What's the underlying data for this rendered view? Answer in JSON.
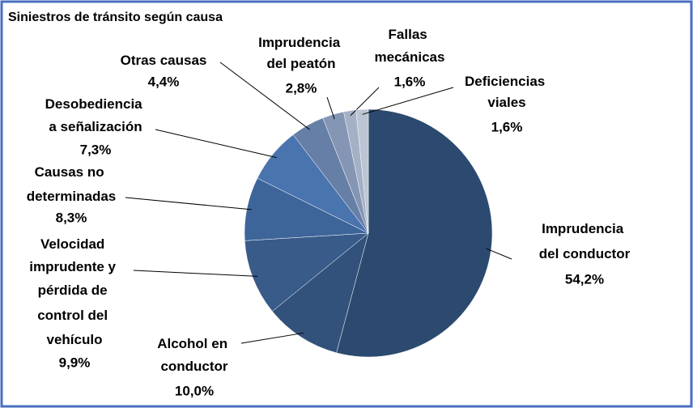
{
  "chart_data": {
    "type": "pie",
    "title": "Siniestros de tránsito según causa",
    "categories": [
      "Imprudencia del conductor",
      "Alcohol en conductor",
      "Velocidad imprudente y pérdida de control del vehículo",
      "Causas no determinadas",
      "Desobediencia a señalización",
      "Otras causas",
      "Imprudencia del peatón",
      "Fallas mecánicas",
      "Deficiencias viales"
    ],
    "values": [
      54.2,
      10.0,
      9.9,
      8.3,
      7.3,
      4.4,
      2.8,
      1.6,
      1.6
    ],
    "value_labels": [
      "54,2%",
      "10,0%",
      "9,9%",
      "8,3%",
      "7,3%",
      "4,4%",
      "2,8%",
      "1,6%",
      "1,6%"
    ],
    "colors": [
      "#2c4a6f",
      "#32527c",
      "#385b89",
      "#3e659a",
      "#4a74ae",
      "#667fa6",
      "#8596b4",
      "#a4b0c6",
      "#bcc5d3"
    ]
  }
}
